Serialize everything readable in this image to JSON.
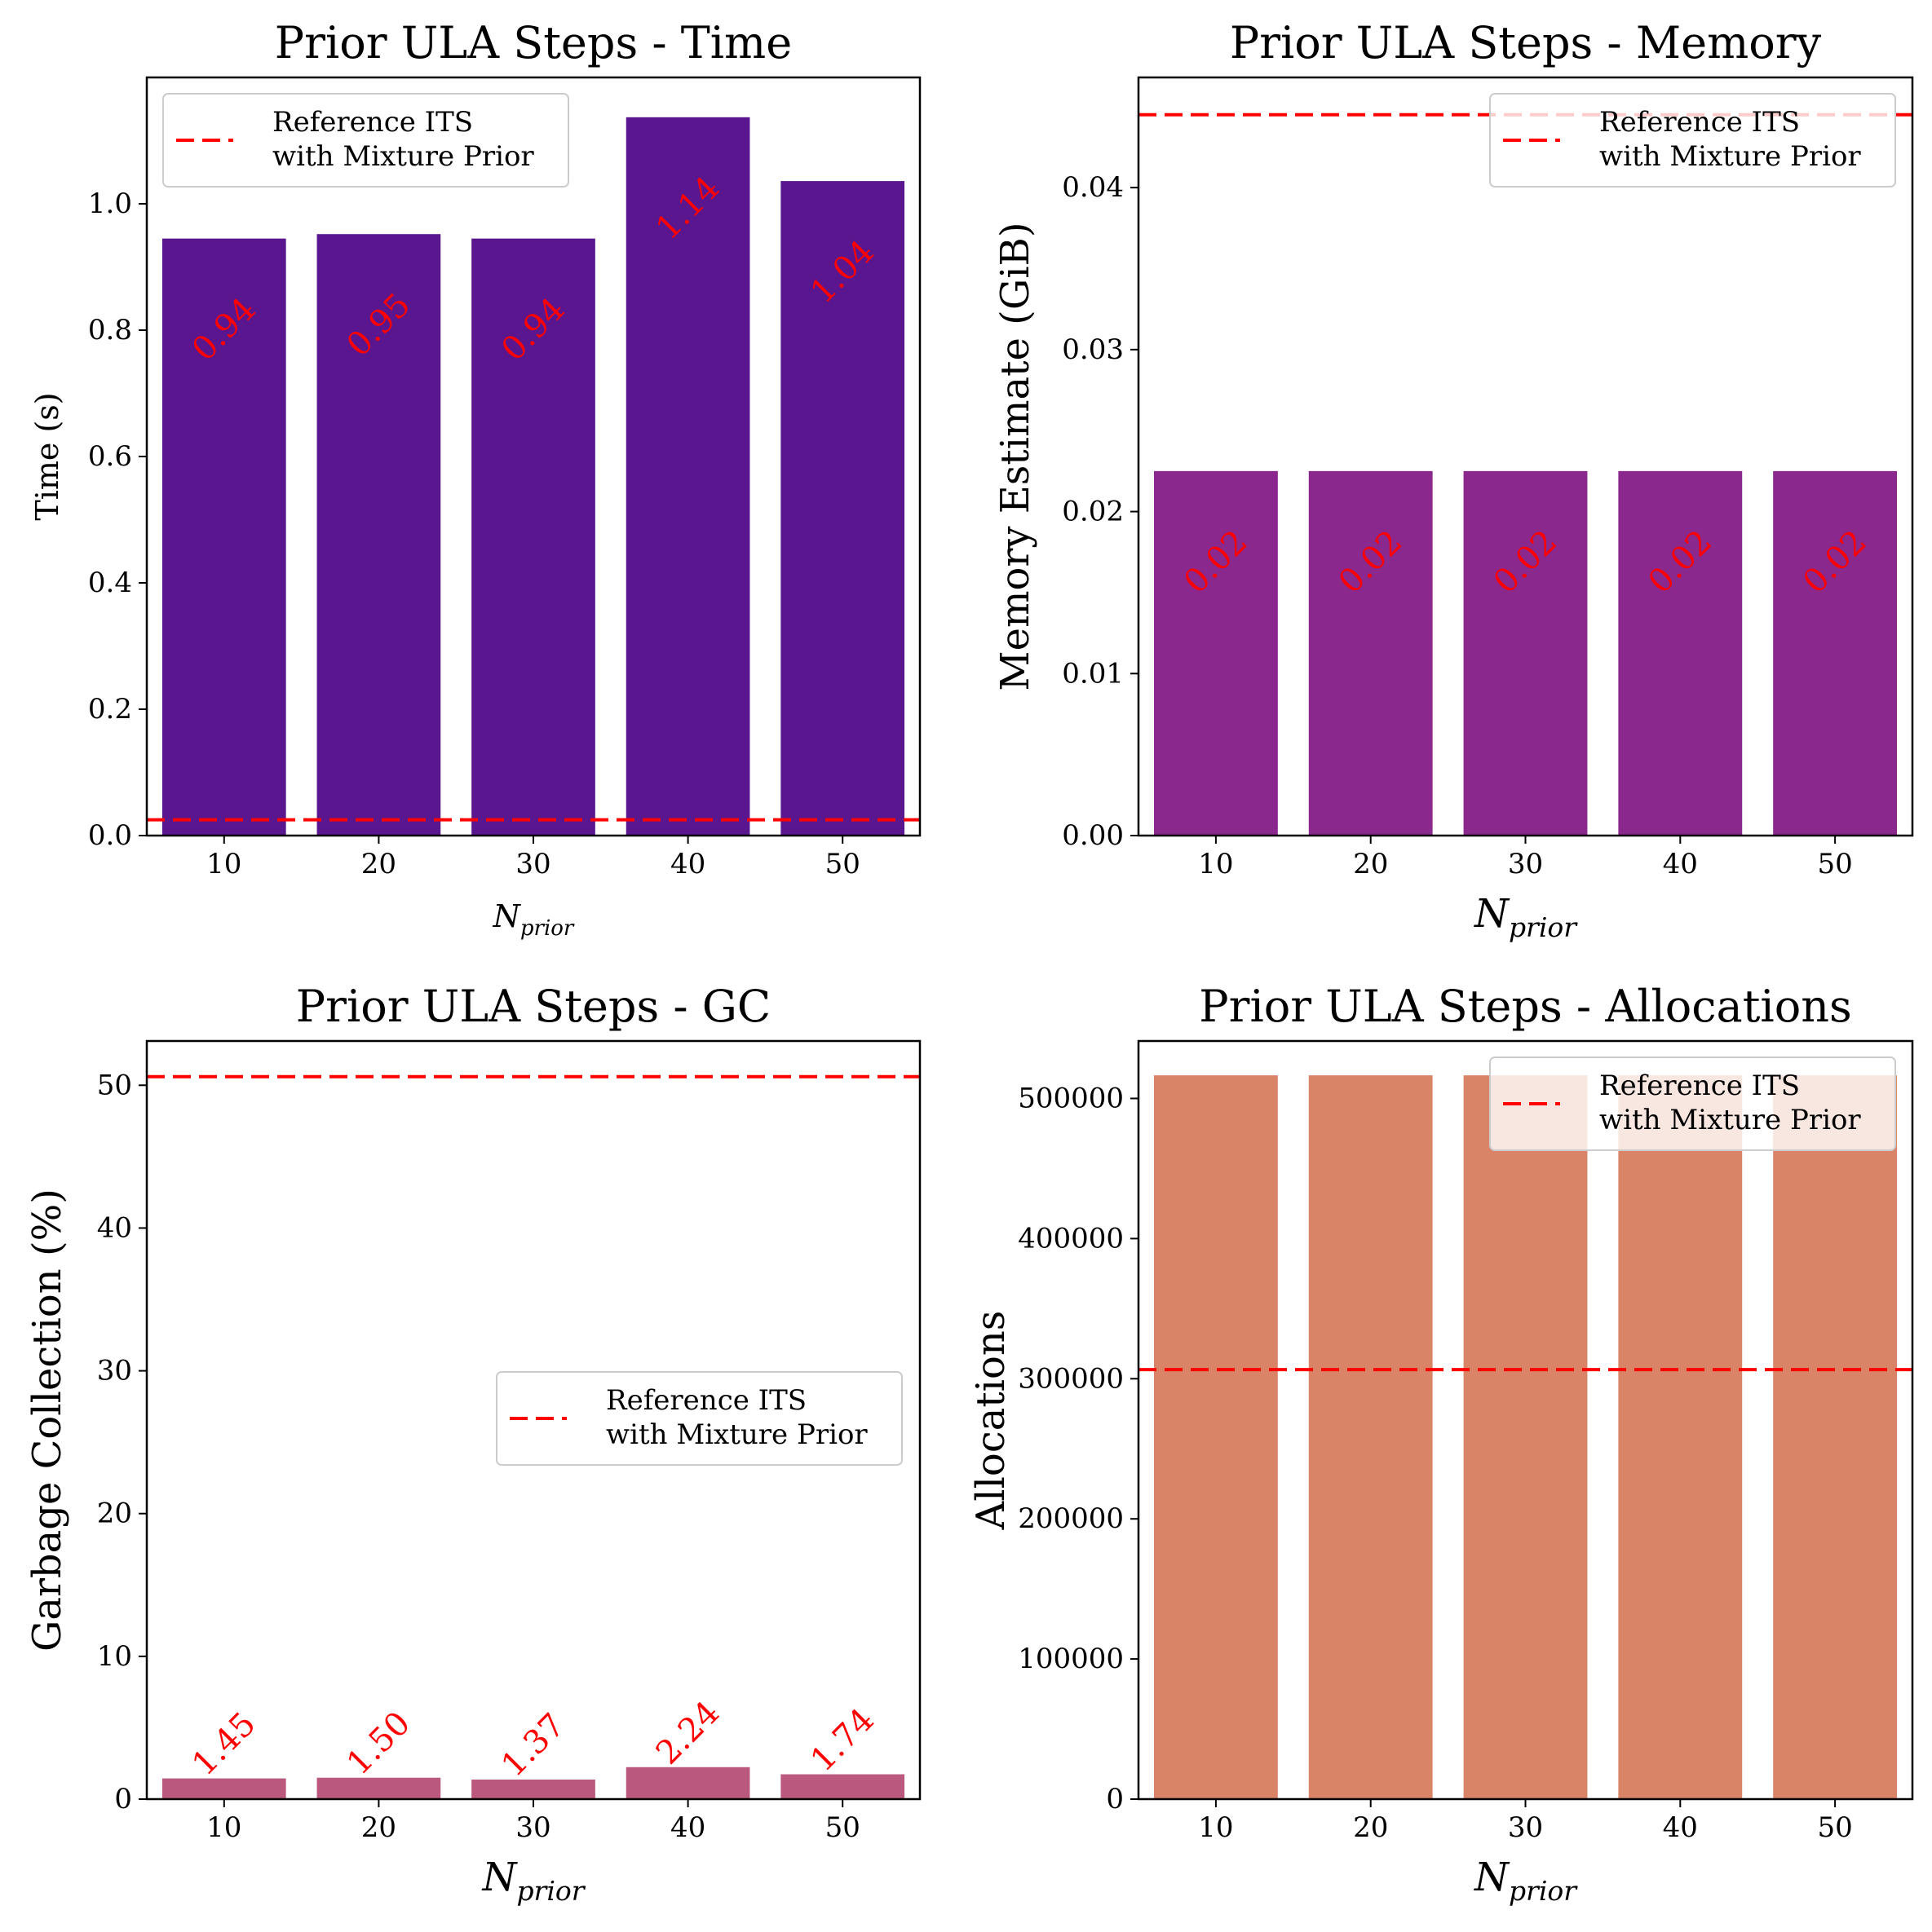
{
  "chart_data": [
    {
      "type": "bar",
      "title": "Prior ULA Steps - Time",
      "ylabel": "Time (s)",
      "xlabel_main": "N",
      "xlabel_sub": "prior",
      "categories": [
        "10",
        "20",
        "30",
        "40",
        "50"
      ],
      "values": [
        0.945,
        0.952,
        0.945,
        1.137,
        1.036
      ],
      "value_labels": [
        "0.94",
        "0.95",
        "0.94",
        "1.14",
        "1.04"
      ],
      "label_position": "inside",
      "bar_color": "#5a168f",
      "ylim": [
        0,
        1.2
      ],
      "yticks": [
        0.0,
        0.2,
        0.4,
        0.6,
        0.8,
        1.0
      ],
      "ytick_labels": [
        "0.0",
        "0.2",
        "0.4",
        "0.6",
        "0.8",
        "1.0"
      ],
      "reference_line": {
        "value": 0.025,
        "color": "#ff0000",
        "style": "dashed"
      },
      "legend": {
        "line1": "Reference ITS",
        "line2": "with Mixture Prior",
        "placement": "upper left"
      }
    },
    {
      "type": "bar",
      "title": "Prior ULA Steps - Memory",
      "ylabel": "Memory Estimate (GiB)",
      "xlabel_main": "N",
      "xlabel_sub": "prior",
      "categories": [
        "10",
        "20",
        "30",
        "40",
        "50"
      ],
      "values": [
        0.0225,
        0.0225,
        0.0225,
        0.0225,
        0.0225
      ],
      "value_labels": [
        "0.02",
        "0.02",
        "0.02",
        "0.02",
        "0.02"
      ],
      "label_position": "inside",
      "bar_color": "#8a288d",
      "ylim": [
        0,
        0.0468
      ],
      "yticks": [
        0.0,
        0.01,
        0.02,
        0.03,
        0.04
      ],
      "ytick_labels": [
        "0.00",
        "0.01",
        "0.02",
        "0.03",
        "0.04"
      ],
      "reference_line": {
        "value": 0.0445,
        "color": "#ff0000",
        "style": "dashed"
      },
      "legend": {
        "line1": "Reference ITS",
        "line2": "with Mixture Prior",
        "placement": "upper right"
      }
    },
    {
      "type": "bar",
      "title": "Prior ULA Steps - GC",
      "ylabel": "Garbage Collection (%)",
      "xlabel_main": "N",
      "xlabel_sub": "prior",
      "categories": [
        "10",
        "20",
        "30",
        "40",
        "50"
      ],
      "values": [
        1.45,
        1.5,
        1.37,
        2.24,
        1.74
      ],
      "value_labels": [
        "1.45",
        "1.50",
        "1.37",
        "2.24",
        "1.74"
      ],
      "label_position": "above",
      "bar_color": "#bb587e",
      "ylim": [
        0,
        53.1
      ],
      "yticks": [
        0,
        10,
        20,
        30,
        40,
        50
      ],
      "ytick_labels": [
        "0",
        "10",
        "20",
        "30",
        "40",
        "50"
      ],
      "reference_line": {
        "value": 50.6,
        "color": "#ff0000",
        "style": "dashed"
      },
      "legend": {
        "line1": "Reference ITS",
        "line2": "with Mixture Prior",
        "placement": "center right"
      }
    },
    {
      "type": "bar",
      "title": "Prior ULA Steps - Allocations",
      "ylabel": "Allocations",
      "xlabel_main": "N",
      "xlabel_sub": "prior",
      "categories": [
        "10",
        "20",
        "30",
        "40",
        "50"
      ],
      "values": [
        516500,
        516500,
        516500,
        516500,
        516500
      ],
      "value_labels": [],
      "label_position": "none",
      "bar_color": "#d98367",
      "ylim": [
        0,
        541000
      ],
      "yticks": [
        0,
        100000,
        200000,
        300000,
        400000,
        500000
      ],
      "ytick_labels": [
        "0",
        "100000",
        "200000",
        "300000",
        "400000",
        "500000"
      ],
      "reference_line": {
        "value": 306500,
        "color": "#ff0000",
        "style": "dashed"
      },
      "legend": {
        "line1": "Reference ITS",
        "line2": "with Mixture Prior",
        "placement": "upper right"
      }
    }
  ]
}
